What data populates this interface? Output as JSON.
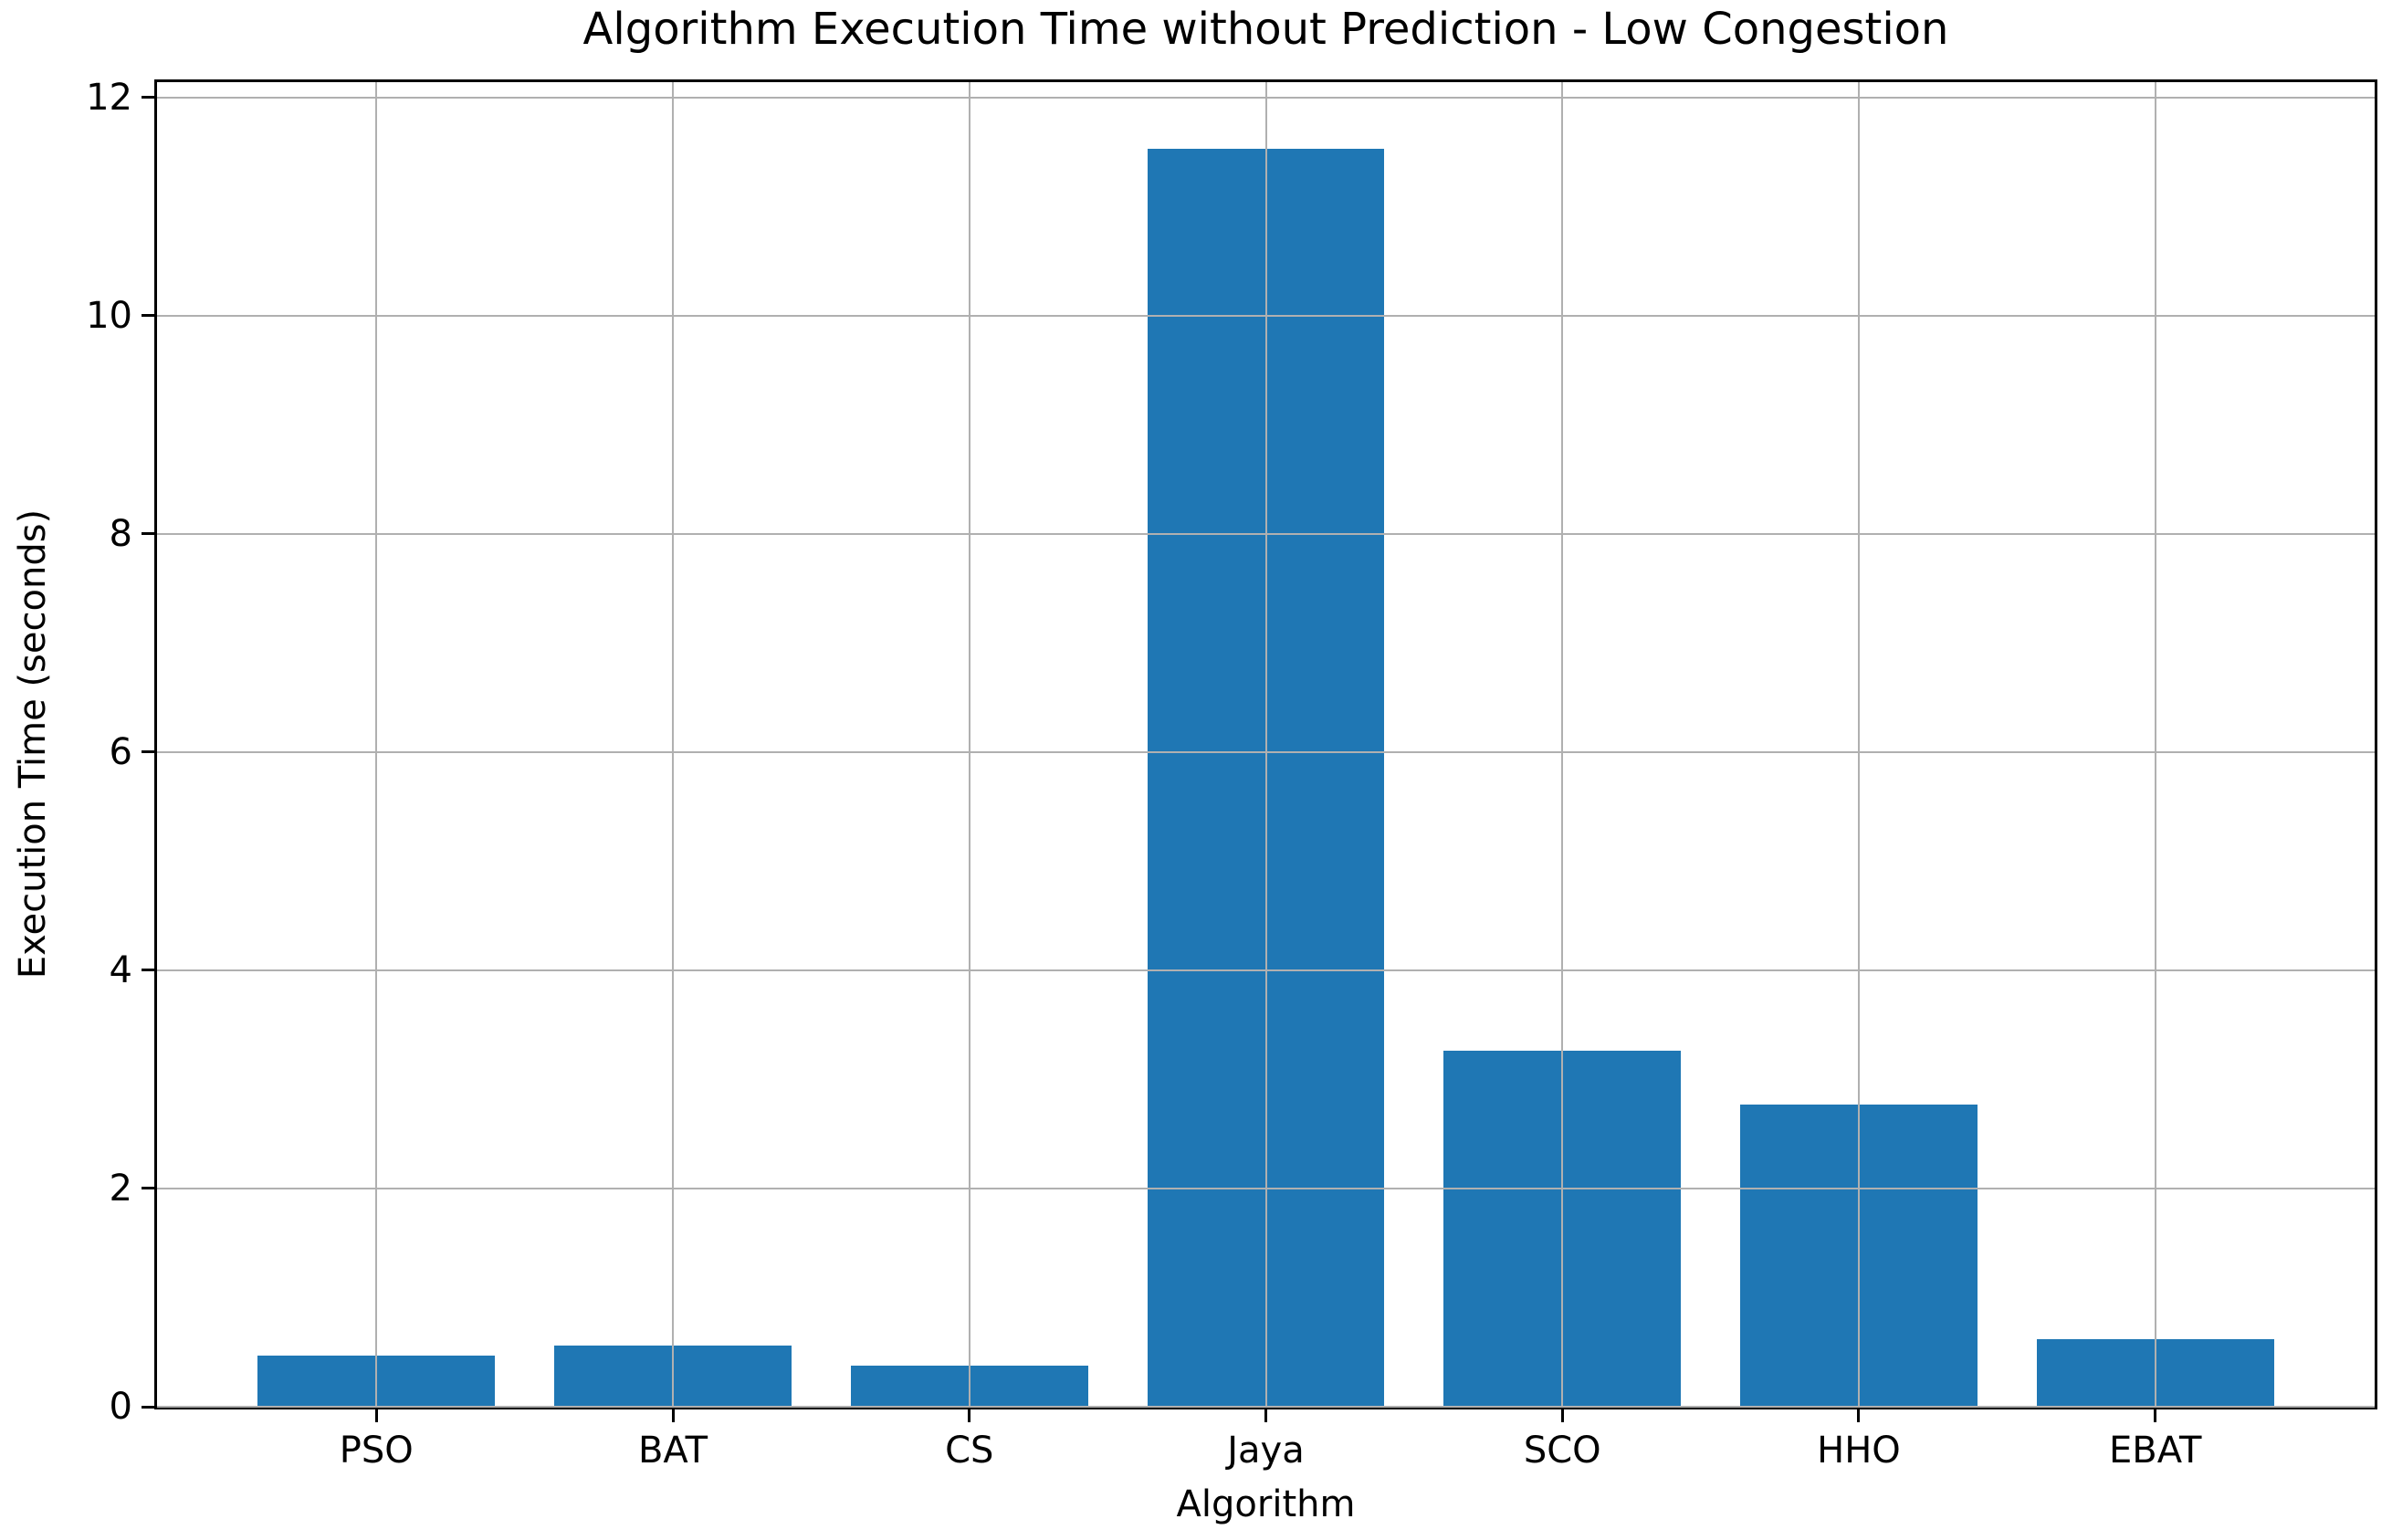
{
  "chart_data": {
    "type": "bar",
    "title": "Algorithm Execution Time without Prediction - Low Congestion",
    "xlabel": "Algorithm",
    "ylabel": "Execution Time (seconds)",
    "categories": [
      "PSO",
      "BAT",
      "CS",
      "Jaya",
      "SCO",
      "HHO",
      "EBAT"
    ],
    "values": [
      0.47,
      0.56,
      0.38,
      11.53,
      3.26,
      2.77,
      0.62
    ],
    "yticks": [
      0,
      2,
      4,
      6,
      8,
      10,
      12
    ],
    "ylim": [
      0,
      12.14
    ],
    "xlim": [
      -0.74,
      6.74
    ],
    "bar_width_ratio": 0.8,
    "grid": true,
    "legend": null,
    "colors": {
      "bar": "#1f77b4",
      "grid": "#b0b0b0",
      "spine": "#000000",
      "text": "#000000",
      "background": "#ffffff"
    }
  }
}
